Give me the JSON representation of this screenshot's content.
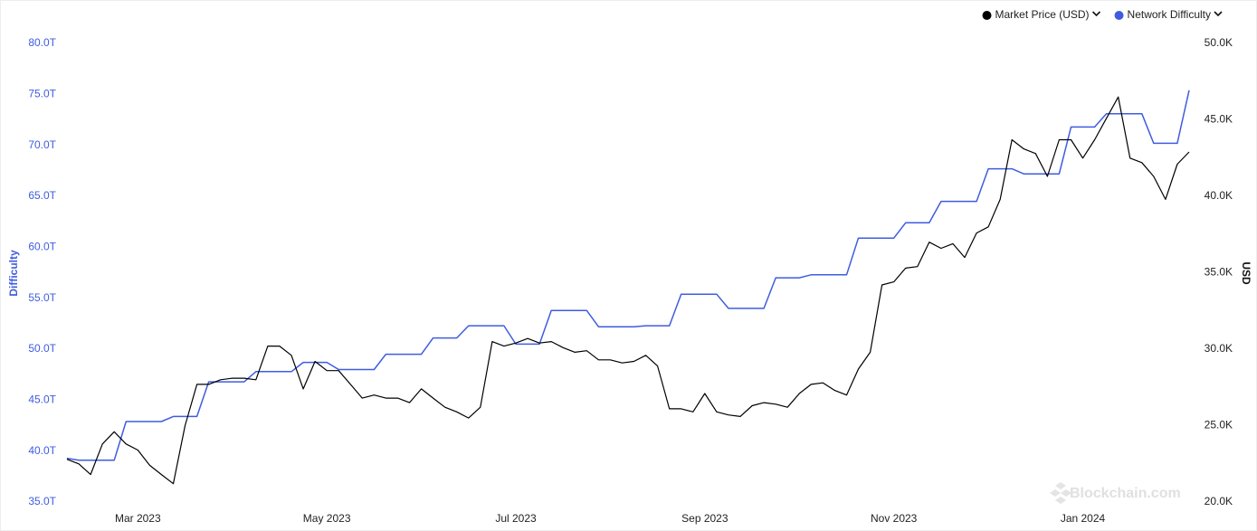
{
  "chart_data": {
    "type": "line",
    "y_label": "Difficulty",
    "y2_label": "USD",
    "watermark": "Blockchain.com",
    "legend": "top-right",
    "categories": [
      null,
      null,
      null,
      null,
      null,
      null,
      "Mar 2023",
      null,
      null,
      null,
      null,
      null,
      null,
      null,
      null,
      null,
      null,
      null,
      null,
      null,
      null,
      null,
      "May 2023",
      null,
      null,
      null,
      null,
      null,
      null,
      null,
      null,
      null,
      null,
      null,
      null,
      null,
      null,
      null,
      "Jul 2023",
      null,
      null,
      null,
      null,
      null,
      null,
      null,
      null,
      null,
      null,
      null,
      null,
      null,
      null,
      null,
      "Sep 2023",
      null,
      null,
      null,
      null,
      null,
      null,
      null,
      null,
      null,
      null,
      null,
      null,
      null,
      null,
      null,
      "Nov 2023",
      null,
      null,
      null,
      null,
      null,
      null,
      null,
      null,
      null,
      null,
      null,
      null,
      null,
      null,
      null,
      "Jan 2024",
      null,
      null,
      null,
      null,
      null,
      null,
      null,
      null,
      null
    ],
    "series": [
      {
        "name": "Market Price (USD)",
        "color": "#000000",
        "axis": "y2",
        "values": [
          22.8,
          22.5,
          21.8,
          23.8,
          24.6,
          23.8,
          23.4,
          22.4,
          21.8,
          21.2,
          25.0,
          27.7,
          27.7,
          28.0,
          28.1,
          28.1,
          28.0,
          30.2,
          30.2,
          29.6,
          27.4,
          29.2,
          28.6,
          28.6,
          27.7,
          26.8,
          27.0,
          26.8,
          26.8,
          26.5,
          27.4,
          26.8,
          26.2,
          25.9,
          25.5,
          26.2,
          30.5,
          30.2,
          30.4,
          30.7,
          30.4,
          30.5,
          30.1,
          29.8,
          29.9,
          29.3,
          29.3,
          29.1,
          29.2,
          29.6,
          28.9,
          26.1,
          26.1,
          25.9,
          27.1,
          25.9,
          25.7,
          25.6,
          26.3,
          26.5,
          26.4,
          26.2,
          27.1,
          27.7,
          27.8,
          27.3,
          27.0,
          28.7,
          29.8,
          34.2,
          34.4,
          35.3,
          35.4,
          37.0,
          36.6,
          36.9,
          36.0,
          37.6,
          38.0,
          39.8,
          43.7,
          43.1,
          42.8,
          41.3,
          43.7,
          43.7,
          42.5,
          43.7,
          45.1,
          46.5,
          42.5,
          42.2,
          41.3,
          39.8,
          42.1,
          42.9
        ]
      },
      {
        "name": "Network Difficulty",
        "color": "#3f5ce0",
        "axis": "y",
        "values": [
          39.3,
          39.1,
          39.1,
          39.1,
          39.1,
          42.9,
          42.9,
          42.9,
          42.9,
          43.4,
          43.4,
          43.4,
          46.8,
          46.8,
          46.8,
          46.8,
          47.8,
          47.8,
          47.8,
          47.8,
          48.7,
          48.7,
          48.7,
          48.0,
          48.0,
          48.0,
          48.0,
          49.5,
          49.5,
          49.5,
          49.5,
          51.1,
          51.1,
          51.1,
          52.3,
          52.3,
          52.3,
          52.3,
          50.5,
          50.5,
          50.5,
          53.8,
          53.8,
          53.8,
          53.8,
          52.2,
          52.2,
          52.2,
          52.2,
          52.3,
          52.3,
          52.3,
          55.4,
          55.4,
          55.4,
          55.4,
          54.0,
          54.0,
          54.0,
          54.0,
          57.0,
          57.0,
          57.0,
          57.3,
          57.3,
          57.3,
          57.3,
          60.9,
          60.9,
          60.9,
          60.9,
          62.4,
          62.4,
          62.4,
          64.5,
          64.5,
          64.5,
          64.5,
          67.7,
          67.7,
          67.7,
          67.2,
          67.2,
          67.2,
          67.2,
          71.8,
          71.8,
          71.8,
          73.1,
          73.1,
          73.1,
          73.1,
          70.2,
          70.2,
          70.2,
          75.4
        ]
      }
    ],
    "ylim": [
      35,
      80
    ],
    "yticks": [
      {
        "value": 35,
        "label": "35.0T"
      },
      {
        "value": 40,
        "label": "40.0T"
      },
      {
        "value": 45,
        "label": "45.0T"
      },
      {
        "value": 50,
        "label": "50.0T"
      },
      {
        "value": 55,
        "label": "55.0T"
      },
      {
        "value": 60,
        "label": "60.0T"
      },
      {
        "value": 65,
        "label": "65.0T"
      },
      {
        "value": 70,
        "label": "70.0T"
      },
      {
        "value": 75,
        "label": "75.0T"
      },
      {
        "value": 80,
        "label": "80.0T"
      }
    ],
    "y2lim": [
      20,
      50
    ],
    "y2ticks": [
      {
        "value": 20,
        "label": "20.0K"
      },
      {
        "value": 25,
        "label": "25.0K"
      },
      {
        "value": 30,
        "label": "30.0K"
      },
      {
        "value": 35,
        "label": "35.0K"
      },
      {
        "value": 40,
        "label": "40.0K"
      },
      {
        "value": 45,
        "label": "45.0K"
      },
      {
        "value": 50,
        "label": "50.0K"
      }
    ]
  }
}
